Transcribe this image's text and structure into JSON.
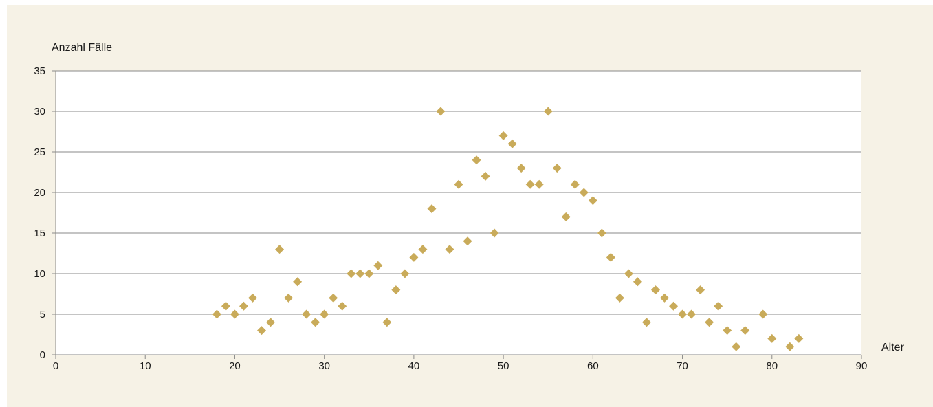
{
  "chart_data": {
    "type": "scatter",
    "title": "",
    "xlabel": "Alter",
    "ylabel": "Anzahl Fälle",
    "xlim": [
      0,
      90
    ],
    "ylim": [
      0,
      35
    ],
    "xticks": [
      0,
      10,
      20,
      30,
      40,
      50,
      60,
      70,
      80,
      90
    ],
    "yticks": [
      0,
      5,
      10,
      15,
      20,
      25,
      30,
      35
    ],
    "grid": "horizontal",
    "marker": "diamond",
    "marker_color": "#c9ab5a",
    "background_color": "#f6f2e6",
    "plot_background_color": "#ffffff",
    "series": [
      {
        "points": [
          [
            18,
            5
          ],
          [
            19,
            6
          ],
          [
            20,
            5
          ],
          [
            21,
            6
          ],
          [
            22,
            7
          ],
          [
            23,
            3
          ],
          [
            24,
            4
          ],
          [
            25,
            13
          ],
          [
            26,
            7
          ],
          [
            27,
            9
          ],
          [
            28,
            5
          ],
          [
            29,
            4
          ],
          [
            30,
            5
          ],
          [
            31,
            7
          ],
          [
            32,
            6
          ],
          [
            33,
            10
          ],
          [
            34,
            10
          ],
          [
            35,
            10
          ],
          [
            36,
            11
          ],
          [
            37,
            4
          ],
          [
            38,
            8
          ],
          [
            39,
            10
          ],
          [
            40,
            12
          ],
          [
            41,
            13
          ],
          [
            42,
            18
          ],
          [
            43,
            30
          ],
          [
            44,
            13
          ],
          [
            45,
            21
          ],
          [
            46,
            14
          ],
          [
            47,
            24
          ],
          [
            48,
            22
          ],
          [
            49,
            15
          ],
          [
            50,
            27
          ],
          [
            51,
            26
          ],
          [
            52,
            23
          ],
          [
            53,
            21
          ],
          [
            54,
            21
          ],
          [
            55,
            30
          ],
          [
            56,
            23
          ],
          [
            57,
            17
          ],
          [
            58,
            21
          ],
          [
            59,
            20
          ],
          [
            60,
            19
          ],
          [
            61,
            15
          ],
          [
            62,
            12
          ],
          [
            63,
            7
          ],
          [
            64,
            10
          ],
          [
            65,
            9
          ],
          [
            66,
            4
          ],
          [
            67,
            8
          ],
          [
            68,
            7
          ],
          [
            69,
            6
          ],
          [
            70,
            5
          ],
          [
            71,
            5
          ],
          [
            72,
            8
          ],
          [
            73,
            4
          ],
          [
            74,
            6
          ],
          [
            75,
            3
          ],
          [
            76,
            1
          ],
          [
            77,
            3
          ],
          [
            79,
            5
          ],
          [
            80,
            2
          ],
          [
            82,
            1
          ],
          [
            83,
            2
          ]
        ]
      }
    ]
  }
}
